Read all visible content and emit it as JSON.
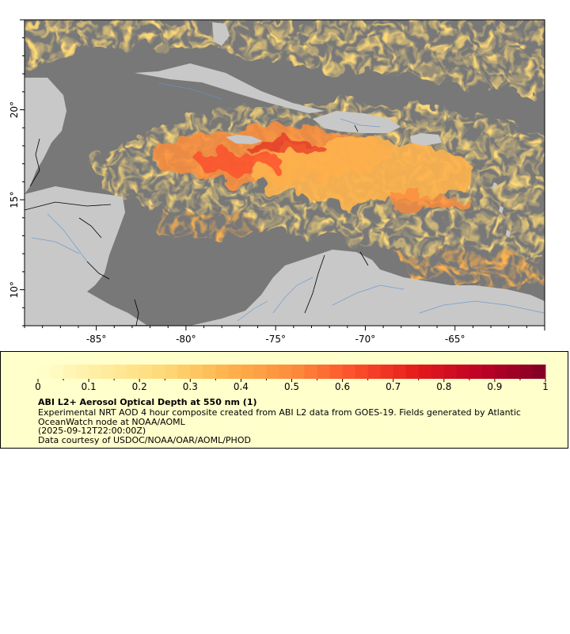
{
  "map": {
    "lon_range": [
      -89,
      -60
    ],
    "lat_range": [
      8,
      25
    ],
    "x_tick_labels": [
      "-85°",
      "-80°",
      "-75°",
      "-70°",
      "-65°"
    ],
    "x_tick_values": [
      -85,
      -80,
      -75,
      -70,
      -65
    ],
    "y_tick_labels": [
      "10°",
      "15°",
      "20°"
    ],
    "y_tick_values": [
      10,
      15,
      20
    ],
    "colors": {
      "ocean": "#787878",
      "land": "#c8c8c8",
      "border": "#000000",
      "river": "#6495cd"
    }
  },
  "colorbar": {
    "min": 0,
    "max": 1,
    "tick_labels": [
      "0",
      "0.1",
      "0.2",
      "0.3",
      "0.4",
      "0.5",
      "0.6",
      "0.7",
      "0.8",
      "0.9",
      "1"
    ],
    "tick_values": [
      0,
      0.1,
      0.2,
      0.3,
      0.4,
      0.5,
      0.6,
      0.7,
      0.8,
      0.9,
      1
    ],
    "colors": [
      "#ffffcc",
      "#ffeda0",
      "#fed976",
      "#feb24c",
      "#fd8d3c",
      "#fc4e2a",
      "#e31a1c",
      "#bd0026",
      "#800026"
    ]
  },
  "legend": {
    "title": "ABI L2+ Aerosol Optical Depth at 550 nm (1)",
    "description": "Experimental NRT AOD 4 hour composite created from ABI L2 data from GOES-19. Fields generated by Atlantic OceanWatch node at NOAA/AOML",
    "date": "(2025-09-12T22:00:00Z)",
    "credit": "Data courtesy of USDOC/NOAA/OAR/AOML/PHOD"
  }
}
